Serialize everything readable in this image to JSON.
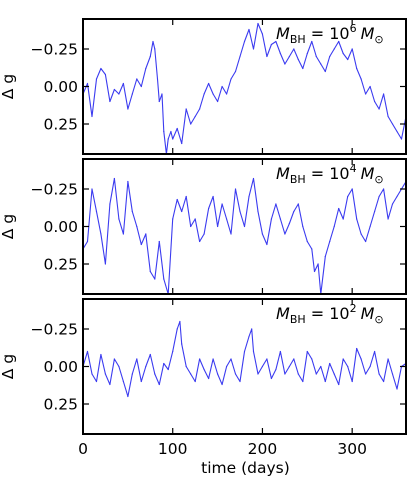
{
  "chart_data": [
    {
      "type": "line",
      "annotation": {
        "symbol": "M",
        "sub": "BH",
        "equals": " = 10",
        "exp": "6",
        "unit_symbol": "M",
        "unit_sub": "⊙"
      },
      "ylabel": "Δ g",
      "y_inverted": true,
      "ylim": [
        -0.45,
        0.45
      ],
      "xlim": [
        0,
        360
      ],
      "yticks": [
        -0.25,
        0.0,
        0.25
      ],
      "ytick_labels": [
        "−0.25",
        "0.00",
        "0.25"
      ],
      "series": [
        {
          "color": "#3b3bf0",
          "x": [
            0,
            5,
            10,
            15,
            20,
            25,
            30,
            35,
            40,
            45,
            50,
            55,
            60,
            65,
            70,
            75,
            78,
            80,
            83,
            85,
            88,
            90,
            93,
            95,
            98,
            100,
            105,
            110,
            115,
            120,
            125,
            130,
            135,
            140,
            145,
            150,
            155,
            160,
            165,
            170,
            175,
            180,
            185,
            190,
            195,
            200,
            205,
            210,
            215,
            220,
            225,
            230,
            235,
            240,
            245,
            250,
            255,
            260,
            265,
            270,
            275,
            280,
            285,
            290,
            295,
            300,
            305,
            310,
            315,
            320,
            325,
            330,
            335,
            340,
            345,
            350,
            355,
            360
          ],
          "values": [
            0.05,
            -0.02,
            0.2,
            -0.05,
            -0.12,
            -0.08,
            0.1,
            0.02,
            0.05,
            -0.02,
            0.15,
            0.05,
            -0.05,
            0.0,
            -0.12,
            -0.2,
            -0.3,
            -0.25,
            -0.05,
            0.1,
            0.05,
            0.3,
            0.45,
            0.35,
            0.3,
            0.35,
            0.28,
            0.38,
            0.15,
            0.25,
            0.2,
            0.15,
            0.05,
            -0.02,
            0.05,
            0.1,
            0.0,
            0.05,
            -0.05,
            -0.1,
            -0.2,
            -0.3,
            -0.38,
            -0.25,
            -0.42,
            -0.35,
            -0.2,
            -0.28,
            -0.3,
            -0.22,
            -0.15,
            -0.2,
            -0.25,
            -0.18,
            -0.12,
            -0.22,
            -0.3,
            -0.2,
            -0.15,
            -0.1,
            -0.2,
            -0.25,
            -0.3,
            -0.22,
            -0.18,
            -0.25,
            -0.12,
            -0.05,
            0.05,
            0.0,
            0.1,
            0.15,
            0.05,
            0.2,
            0.25,
            0.3,
            0.35,
            0.2
          ]
        }
      ]
    },
    {
      "type": "line",
      "annotation": {
        "symbol": "M",
        "sub": "BH",
        "equals": " = 10",
        "exp": "4",
        "unit_symbol": "M",
        "unit_sub": "⊙"
      },
      "ylabel": "Δ g",
      "y_inverted": true,
      "ylim": [
        -0.45,
        0.45
      ],
      "xlim": [
        0,
        360
      ],
      "yticks": [
        -0.25,
        0.0,
        0.25
      ],
      "ytick_labels": [
        "−0.25",
        "0.00",
        "0.25"
      ],
      "series": [
        {
          "color": "#3b3bf0",
          "x": [
            0,
            5,
            10,
            15,
            20,
            25,
            30,
            35,
            40,
            45,
            50,
            55,
            60,
            65,
            70,
            75,
            80,
            85,
            90,
            95,
            100,
            105,
            110,
            115,
            120,
            125,
            130,
            135,
            140,
            145,
            150,
            155,
            160,
            165,
            170,
            175,
            180,
            185,
            190,
            195,
            200,
            205,
            210,
            215,
            220,
            225,
            230,
            235,
            240,
            245,
            250,
            255,
            258,
            262,
            265,
            270,
            275,
            280,
            285,
            290,
            295,
            300,
            305,
            310,
            315,
            320,
            325,
            330,
            335,
            340,
            345,
            350,
            355,
            360
          ],
          "values": [
            0.15,
            0.1,
            -0.25,
            -0.1,
            0.05,
            0.25,
            -0.15,
            -0.32,
            -0.05,
            0.05,
            -0.3,
            -0.1,
            0.0,
            0.12,
            0.05,
            0.3,
            0.35,
            0.1,
            0.35,
            0.45,
            -0.05,
            -0.18,
            -0.1,
            -0.2,
            0.0,
            -0.05,
            0.1,
            0.05,
            -0.12,
            -0.2,
            0.0,
            -0.15,
            -0.05,
            0.05,
            -0.25,
            -0.1,
            0.0,
            -0.2,
            -0.32,
            -0.1,
            0.05,
            0.12,
            -0.05,
            -0.15,
            -0.05,
            0.05,
            -0.02,
            -0.1,
            -0.15,
            0.0,
            0.1,
            0.15,
            0.3,
            0.25,
            0.45,
            0.2,
            0.1,
            0.0,
            -0.12,
            -0.05,
            -0.2,
            -0.25,
            -0.05,
            0.05,
            0.1,
            0.0,
            -0.1,
            -0.2,
            -0.25,
            -0.05,
            -0.15,
            -0.2,
            -0.25,
            -0.3
          ]
        }
      ]
    },
    {
      "type": "line",
      "annotation": {
        "symbol": "M",
        "sub": "BH",
        "equals": " = 10",
        "exp": "2",
        "unit_symbol": "M",
        "unit_sub": "⊙"
      },
      "ylabel": "Δ g",
      "y_inverted": true,
      "ylim": [
        -0.45,
        0.45
      ],
      "xlim": [
        0,
        360
      ],
      "yticks": [
        -0.25,
        0.0,
        0.25
      ],
      "ytick_labels": [
        "−0.25",
        "0.00",
        "0.25"
      ],
      "xticks": [
        0,
        100,
        200,
        300
      ],
      "xtick_labels": [
        "0",
        "100",
        "200",
        "300"
      ],
      "xlabel": "time (days)",
      "series": [
        {
          "color": "#3b3bf0",
          "x": [
            0,
            5,
            10,
            15,
            20,
            25,
            30,
            35,
            40,
            45,
            50,
            55,
            60,
            65,
            70,
            75,
            80,
            85,
            90,
            95,
            100,
            105,
            108,
            110,
            115,
            120,
            125,
            130,
            135,
            140,
            145,
            150,
            155,
            160,
            165,
            170,
            175,
            180,
            185,
            188,
            190,
            195,
            200,
            205,
            210,
            215,
            220,
            225,
            230,
            235,
            240,
            245,
            250,
            255,
            260,
            265,
            270,
            275,
            280,
            285,
            290,
            295,
            300,
            305,
            310,
            315,
            320,
            325,
            330,
            335,
            340,
            345,
            350,
            355,
            360
          ],
          "values": [
            0.0,
            -0.1,
            0.05,
            0.1,
            -0.08,
            0.05,
            0.12,
            -0.05,
            0.0,
            0.1,
            0.2,
            0.05,
            -0.05,
            0.1,
            0.0,
            -0.08,
            0.05,
            0.12,
            -0.02,
            0.02,
            -0.1,
            -0.25,
            -0.3,
            -0.15,
            0.0,
            0.05,
            0.1,
            -0.05,
            0.02,
            0.08,
            -0.05,
            0.05,
            0.12,
            0.0,
            -0.05,
            0.05,
            0.1,
            -0.1,
            -0.2,
            -0.25,
            -0.1,
            0.05,
            0.0,
            -0.05,
            0.08,
            0.02,
            -0.1,
            0.05,
            0.0,
            -0.05,
            0.05,
            0.1,
            -0.1,
            -0.05,
            0.05,
            0.0,
            0.1,
            -0.02,
            0.05,
            0.12,
            -0.05,
            0.0,
            0.1,
            -0.12,
            -0.05,
            0.05,
            0.0,
            -0.1,
            0.05,
            0.1,
            -0.05,
            0.05,
            0.15,
            0.0,
            -0.02
          ]
        }
      ]
    }
  ]
}
